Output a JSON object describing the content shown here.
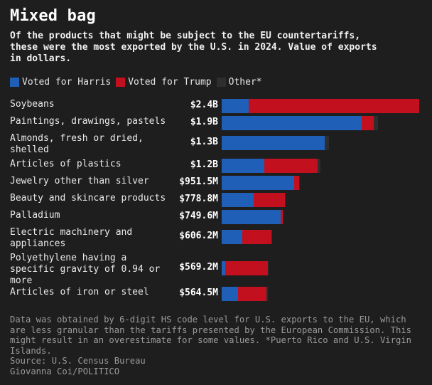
{
  "title": "Mixed bag",
  "subtitle": "Of the products that might be subject to the EU countertariffs,\nthese were the most exported by the U.S. in 2024. Value of exports\nin dollars.",
  "legend": [
    {
      "label": "Voted for Harris",
      "color": "#1f5fb8"
    },
    {
      "label": "Voted for Trump",
      "color": "#c2101f"
    },
    {
      "label": "Other*",
      "color": "#2e2e2e"
    }
  ],
  "chart_data": {
    "type": "bar",
    "orientation": "horizontal",
    "stacked": true,
    "series": [
      {
        "name": "Voted for Harris",
        "color": "#1f5fb8"
      },
      {
        "name": "Voted for Trump",
        "color": "#c2101f"
      },
      {
        "name": "Other*",
        "color": "#2e2e2e"
      }
    ],
    "rows": [
      {
        "label": "Soybeans",
        "value_label": "$2.4B",
        "total": 2.4,
        "harris": 0.33,
        "trump": 2.07,
        "other": 0.0
      },
      {
        "label": "Paintings, drawings, pastels",
        "value_label": "$1.9B",
        "total": 1.9,
        "harris": 1.7,
        "trump": 0.15,
        "other": 0.05
      },
      {
        "label": "Almonds, fresh or dried,\nshelled",
        "value_label": "$1.3B",
        "total": 1.3,
        "harris": 1.25,
        "trump": 0.0,
        "other": 0.05
      },
      {
        "label": "Articles of plastics",
        "value_label": "$1.2B",
        "total": 1.2,
        "harris": 0.52,
        "trump": 0.65,
        "other": 0.03
      },
      {
        "label": "Jewelry other than silver",
        "value_label": "$951.5M",
        "total": 0.9515,
        "harris": 0.88,
        "trump": 0.06,
        "other": 0.0115
      },
      {
        "label": "Beauty and skincare products",
        "value_label": "$778.8M",
        "total": 0.7788,
        "harris": 0.39,
        "trump": 0.38,
        "other": 0.0088
      },
      {
        "label": "Palladium",
        "value_label": "$749.6M",
        "total": 0.7496,
        "harris": 0.72,
        "trump": 0.02,
        "other": 0.0096
      },
      {
        "label": "Electric machinery and\nappliances",
        "value_label": "$606.2M",
        "total": 0.6062,
        "harris": 0.25,
        "trump": 0.35,
        "other": 0.0062
      },
      {
        "label": "Polyethylene having a\nspecific gravity of 0.94 or\nmore",
        "value_label": "$569.2M",
        "total": 0.5692,
        "harris": 0.04,
        "trump": 0.52,
        "other": 0.0092
      },
      {
        "label": "Articles of iron or steel",
        "value_label": "$564.5M",
        "total": 0.5645,
        "harris": 0.2,
        "trump": 0.34,
        "other": 0.0245
      }
    ]
  },
  "footer": "Data was obtained by 6-digit HS code level for U.S. exports to the EU, which\nare less granular than the tariffs presented by the European Commission. This\nmight result in an overestimate for some values. *Puerto Rico and U.S. Virgin\nIslands.\nSource: U.S. Census Bureau\nGiovanna Coi/POLITICO"
}
